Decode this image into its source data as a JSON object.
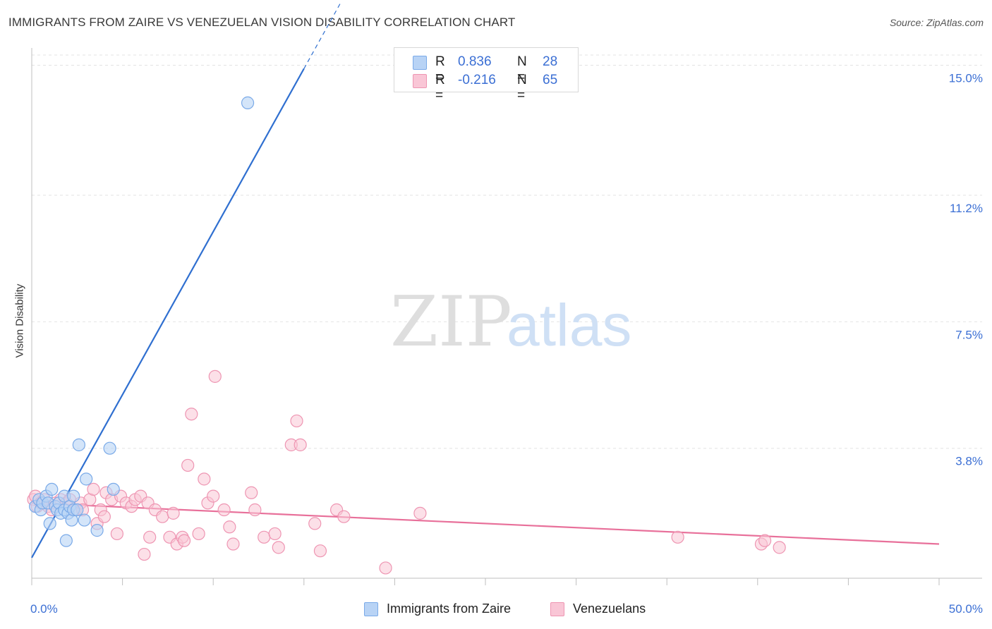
{
  "title": "IMMIGRANTS FROM ZAIRE VS VENEZUELAN VISION DISABILITY CORRELATION CHART",
  "source": "Source: ZipAtlas.com",
  "watermark": {
    "zip": "ZIP",
    "atlas": "atlas"
  },
  "legend_top": {
    "rows": [
      {
        "r_label": "R =",
        "r_value": "0.836",
        "n_label": "N =",
        "n_value": "28"
      },
      {
        "r_label": "R =",
        "r_value": "-0.216",
        "n_label": "N =",
        "n_value": "65"
      }
    ]
  },
  "legend_bottom": {
    "items": [
      "Immigrants from Zaire",
      "Venezuelans"
    ]
  },
  "colors": {
    "blue_fill": "#b8d3f5",
    "blue_stroke": "#7aaae8",
    "blue_line": "#2f6fd0",
    "pink_fill": "#f9c6d6",
    "pink_stroke": "#ee95b2",
    "pink_line": "#e8709a",
    "axis_label": "#3b6fd4",
    "grid": "#e3e3e3"
  },
  "chart_data": {
    "type": "scatter",
    "title": "IMMIGRANTS FROM ZAIRE VS VENEZUELAN VISION DISABILITY CORRELATION CHART",
    "xlabel": "",
    "ylabel": "Vision Disability",
    "xlim": [
      0,
      50
    ],
    "ylim": [
      0,
      15.3
    ],
    "x_tick_labels": [
      "0.0%",
      "50.0%"
    ],
    "y_ticks": [
      3.8,
      7.5,
      11.2,
      15.0
    ],
    "y_tick_labels": [
      "3.8%",
      "7.5%",
      "11.2%",
      "15.0%"
    ],
    "series": [
      {
        "name": "Immigrants from Zaire",
        "color": "blue",
        "points": [
          [
            0.2,
            2.1
          ],
          [
            0.4,
            2.3
          ],
          [
            0.5,
            2.0
          ],
          [
            0.6,
            2.2
          ],
          [
            0.8,
            2.4
          ],
          [
            0.9,
            2.2
          ],
          [
            1.0,
            1.6
          ],
          [
            1.1,
            2.6
          ],
          [
            1.3,
            2.1
          ],
          [
            1.4,
            2.0
          ],
          [
            1.5,
            2.2
          ],
          [
            1.6,
            1.9
          ],
          [
            1.8,
            2.0
          ],
          [
            1.8,
            2.4
          ],
          [
            1.9,
            1.1
          ],
          [
            2.0,
            1.9
          ],
          [
            2.1,
            2.1
          ],
          [
            2.2,
            1.7
          ],
          [
            2.3,
            2.0
          ],
          [
            2.3,
            2.4
          ],
          [
            2.5,
            2.0
          ],
          [
            2.6,
            3.9
          ],
          [
            2.9,
            1.7
          ],
          [
            3.0,
            2.9
          ],
          [
            3.6,
            1.4
          ],
          [
            4.3,
            3.8
          ],
          [
            4.5,
            2.6
          ],
          [
            11.9,
            13.9
          ]
        ],
        "trend": {
          "x": [
            0.0,
            15.0
          ],
          "y": [
            0.6,
            14.9
          ],
          "solid_until_x": 15.0,
          "dashed_to_x": 17.0
        },
        "R": 0.836,
        "N": 28
      },
      {
        "name": "Venezuelans",
        "color": "pink",
        "points": [
          [
            0.1,
            2.3
          ],
          [
            0.2,
            2.4
          ],
          [
            0.3,
            2.1
          ],
          [
            0.5,
            2.2
          ],
          [
            0.7,
            2.3
          ],
          [
            0.9,
            2.1
          ],
          [
            1.1,
            2.0
          ],
          [
            1.3,
            2.2
          ],
          [
            1.6,
            2.3
          ],
          [
            1.9,
            2.2
          ],
          [
            2.1,
            2.3
          ],
          [
            2.4,
            2.0
          ],
          [
            2.7,
            2.2
          ],
          [
            2.8,
            2.0
          ],
          [
            3.2,
            2.3
          ],
          [
            3.4,
            2.6
          ],
          [
            3.6,
            1.6
          ],
          [
            3.8,
            2.0
          ],
          [
            4.0,
            1.8
          ],
          [
            4.1,
            2.5
          ],
          [
            4.4,
            2.3
          ],
          [
            4.7,
            1.3
          ],
          [
            4.9,
            2.4
          ],
          [
            5.2,
            2.2
          ],
          [
            5.5,
            2.1
          ],
          [
            5.7,
            2.3
          ],
          [
            6.0,
            2.4
          ],
          [
            6.2,
            0.7
          ],
          [
            6.4,
            2.2
          ],
          [
            6.5,
            1.2
          ],
          [
            6.8,
            2.0
          ],
          [
            7.2,
            1.8
          ],
          [
            7.6,
            1.2
          ],
          [
            7.8,
            1.9
          ],
          [
            8.0,
            1.0
          ],
          [
            8.3,
            1.2
          ],
          [
            8.4,
            1.1
          ],
          [
            8.6,
            3.3
          ],
          [
            8.8,
            4.8
          ],
          [
            9.2,
            1.3
          ],
          [
            9.5,
            2.9
          ],
          [
            9.7,
            2.2
          ],
          [
            10.0,
            2.4
          ],
          [
            10.1,
            5.9
          ],
          [
            10.6,
            2.0
          ],
          [
            10.9,
            1.5
          ],
          [
            11.1,
            1.0
          ],
          [
            12.1,
            2.5
          ],
          [
            12.3,
            2.0
          ],
          [
            12.8,
            1.2
          ],
          [
            13.4,
            1.3
          ],
          [
            13.6,
            0.9
          ],
          [
            14.3,
            3.9
          ],
          [
            14.6,
            4.6
          ],
          [
            14.8,
            3.9
          ],
          [
            15.6,
            1.6
          ],
          [
            15.9,
            0.8
          ],
          [
            16.8,
            2.0
          ],
          [
            17.2,
            1.8
          ],
          [
            19.5,
            0.3
          ],
          [
            21.4,
            1.9
          ],
          [
            35.6,
            1.2
          ],
          [
            40.2,
            1.0
          ],
          [
            40.4,
            1.1
          ],
          [
            41.2,
            0.9
          ]
        ],
        "trend": {
          "x": [
            0.0,
            50.0
          ],
          "y": [
            2.2,
            1.0
          ]
        },
        "R": -0.216,
        "N": 65
      }
    ]
  }
}
